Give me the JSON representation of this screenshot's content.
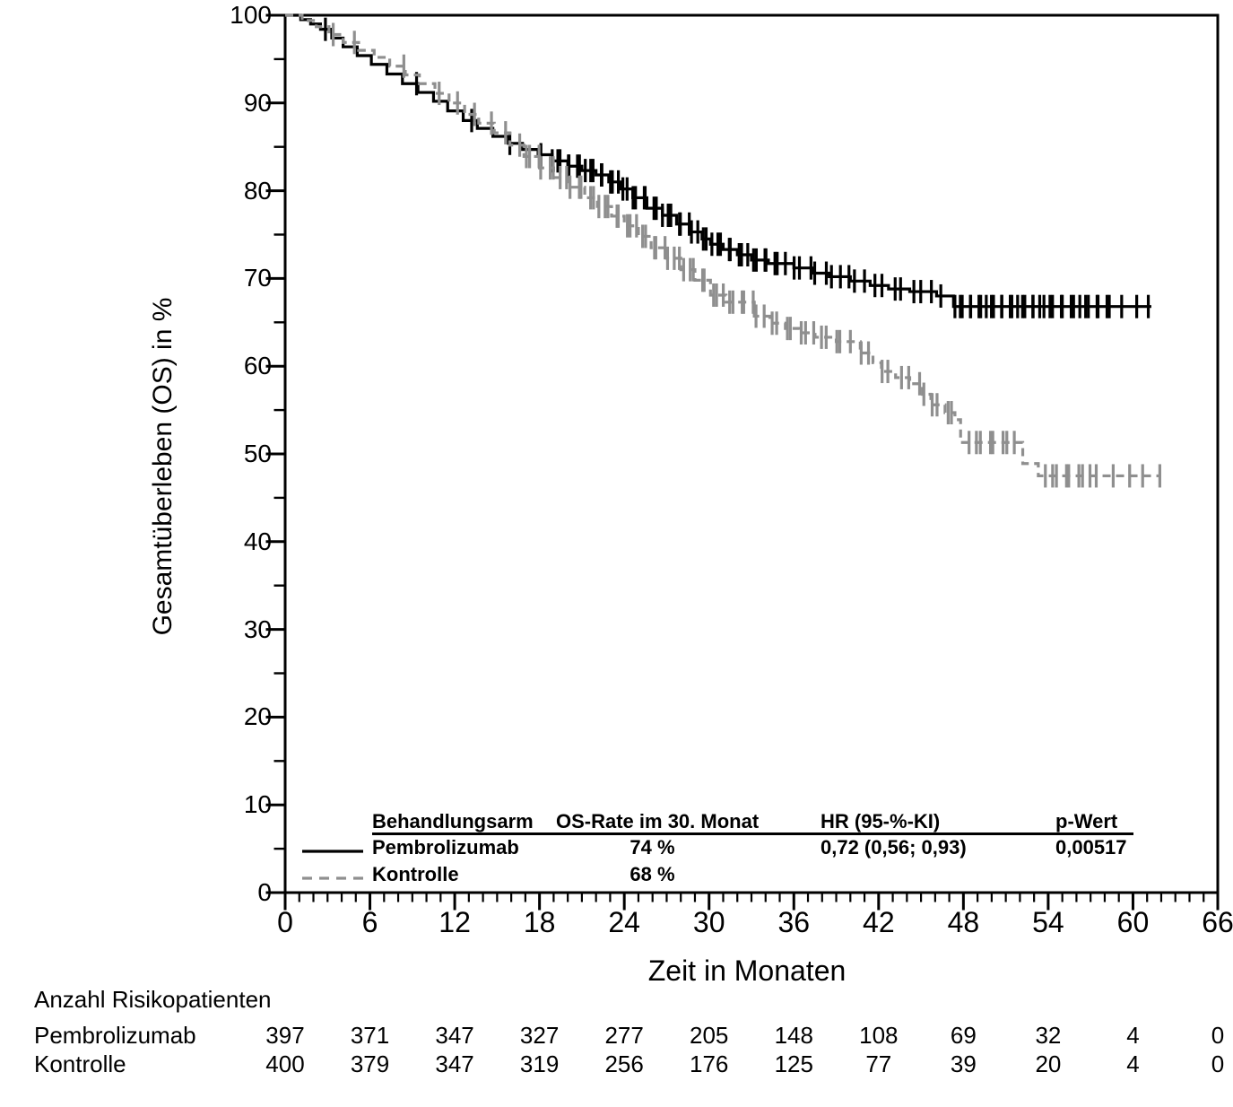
{
  "chart_data": {
    "type": "line",
    "subtype": "kaplan-meier-step",
    "title": "",
    "xlabel": "Zeit in Monaten",
    "ylabel": "Gesamtüberleben (OS) in %",
    "xlim": [
      0,
      66
    ],
    "ylim": [
      0,
      100
    ],
    "xticks": [
      0,
      6,
      12,
      18,
      24,
      30,
      36,
      42,
      48,
      54,
      60,
      66
    ],
    "yticks": [
      0,
      10,
      20,
      30,
      40,
      50,
      60,
      70,
      80,
      90,
      100
    ],
    "xtick_minor_step": 1,
    "ytick_minor_step": 5,
    "ytick_major_step": 10,
    "xtick_major_step": 6,
    "grid": false,
    "legend_position": "inside-bottom",
    "series": [
      {
        "name": "Pembrolizumab",
        "color": "#000000",
        "line_style": "solid",
        "points": [
          [
            0,
            100
          ],
          [
            1.1,
            99.5
          ],
          [
            1.8,
            99.0
          ],
          [
            2.5,
            98.4
          ],
          [
            3.3,
            97.4
          ],
          [
            4.1,
            96.4
          ],
          [
            5.1,
            95.4
          ],
          [
            6.1,
            94.4
          ],
          [
            7.2,
            93.3
          ],
          [
            8.3,
            92.2
          ],
          [
            9.4,
            91.2
          ],
          [
            10.5,
            90.2
          ],
          [
            11.5,
            89.1
          ],
          [
            12.6,
            88.0
          ],
          [
            13.6,
            87.1
          ],
          [
            14.7,
            86.2
          ],
          [
            15.8,
            85.4
          ],
          [
            16.8,
            84.7
          ],
          [
            17.9,
            84.1
          ],
          [
            18.9,
            83.4
          ],
          [
            20.0,
            82.8
          ],
          [
            21.0,
            82.3
          ],
          [
            22.0,
            81.8
          ],
          [
            22.9,
            81.0
          ],
          [
            23.7,
            80.2
          ],
          [
            24.6,
            79.2
          ],
          [
            25.6,
            78.0
          ],
          [
            26.7,
            77.2
          ],
          [
            27.7,
            76.2
          ],
          [
            28.6,
            75.3
          ],
          [
            29.5,
            74.5
          ],
          [
            30.1,
            73.9
          ],
          [
            31.0,
            73.3
          ],
          [
            32.0,
            72.7
          ],
          [
            33.0,
            72.1
          ],
          [
            34.2,
            71.7
          ],
          [
            36.0,
            71.2
          ],
          [
            37.4,
            70.6
          ],
          [
            38.5,
            70.2
          ],
          [
            40.0,
            69.7
          ],
          [
            41.4,
            69.2
          ],
          [
            42.7,
            68.8
          ],
          [
            44.2,
            68.5
          ],
          [
            46.1,
            68.0
          ],
          [
            47.3,
            66.8
          ],
          [
            61.3,
            66.8
          ]
        ],
        "censor_marks": {
          "singles": [
            2.85,
            9.3,
            13.2,
            15.9,
            18.1
          ],
          "bands": [
            [
              18.9,
              23.9,
              16
            ],
            [
              24.2,
              29.9,
              17
            ],
            [
              30.2,
              34.9,
              14
            ],
            [
              35.4,
              40.4,
              10
            ],
            [
              41.0,
              46.4,
              9
            ],
            [
              47.4,
              53.4,
              20
            ],
            [
              53.7,
              58.4,
              14
            ],
            [
              59.2,
              61.2,
              3
            ]
          ]
        }
      },
      {
        "name": "Kontrolle",
        "color": "#8f8f8f",
        "line_style": "dashed",
        "points": [
          [
            0,
            100
          ],
          [
            1.2,
            99.4
          ],
          [
            2.2,
            98.7
          ],
          [
            3.1,
            97.8
          ],
          [
            4.1,
            96.9
          ],
          [
            5.2,
            96.0
          ],
          [
            6.3,
            95.2
          ],
          [
            7.4,
            94.2
          ],
          [
            8.5,
            93.2
          ],
          [
            9.5,
            92.2
          ],
          [
            10.6,
            91.1
          ],
          [
            11.6,
            90.0
          ],
          [
            12.7,
            88.7
          ],
          [
            13.7,
            87.7
          ],
          [
            14.8,
            86.6
          ],
          [
            15.9,
            85.2
          ],
          [
            16.9,
            83.9
          ],
          [
            18.0,
            82.6
          ],
          [
            19.0,
            81.5
          ],
          [
            20.1,
            80.4
          ],
          [
            21.2,
            79.2
          ],
          [
            22.1,
            78.2
          ],
          [
            23.1,
            77.1
          ],
          [
            24.0,
            76.0
          ],
          [
            25.0,
            74.8
          ],
          [
            25.9,
            73.5
          ],
          [
            27.0,
            72.3
          ],
          [
            28.0,
            71.0
          ],
          [
            29.0,
            69.8
          ],
          [
            30.1,
            68.1
          ],
          [
            31.2,
            67.3
          ],
          [
            33.2,
            65.7
          ],
          [
            34.3,
            64.9
          ],
          [
            35.4,
            64.3
          ],
          [
            36.4,
            63.8
          ],
          [
            37.5,
            63.3
          ],
          [
            39.0,
            62.8
          ],
          [
            40.7,
            61.5
          ],
          [
            41.6,
            60.4
          ],
          [
            42.2,
            59.4
          ],
          [
            43.2,
            58.7
          ],
          [
            44.2,
            58.0
          ],
          [
            45.1,
            56.8
          ],
          [
            45.7,
            55.6
          ],
          [
            46.7,
            54.7
          ],
          [
            47.4,
            53.9
          ],
          [
            47.8,
            51.3
          ],
          [
            52.2,
            48.9
          ],
          [
            53.3,
            47.5
          ],
          [
            62.0,
            47.5
          ]
        ],
        "censor_marks": {
          "singles": [
            3.4,
            4.9,
            8.4,
            10.9,
            12.2,
            13.4,
            14.6,
            15.6
          ],
          "bands": [
            [
              16.6,
              21.9,
              14
            ],
            [
              22.2,
              27.9,
              16
            ],
            [
              28.2,
              33.4,
              14
            ],
            [
              33.9,
              39.4,
              12
            ],
            [
              40.0,
              44.9,
              8
            ],
            [
              45.2,
              47.3,
              5
            ],
            [
              48.4,
              51.6,
              8
            ],
            [
              53.8,
              57.4,
              9
            ],
            [
              58.6,
              61.9,
              4
            ]
          ]
        }
      }
    ]
  },
  "legend_table": {
    "headers": [
      "Behandlungsarm",
      "OS-Rate im 30. Monat",
      "HR (95-%-KI)",
      "p-Wert"
    ],
    "rows": [
      {
        "label": "Pembrolizumab",
        "os_rate": "74 %",
        "hr": "0,72 (0,56; 0,93)",
        "p_value": "0,00517"
      },
      {
        "label": "Kontrolle",
        "os_rate": "68 %",
        "hr": "",
        "p_value": ""
      }
    ]
  },
  "risk_table": {
    "title": "Anzahl Risikopatienten",
    "timepoints": [
      0,
      6,
      12,
      18,
      24,
      30,
      36,
      42,
      48,
      54,
      60,
      66
    ],
    "rows": [
      {
        "label": "Pembrolizumab",
        "values": [
          397,
          371,
          347,
          327,
          277,
          205,
          148,
          108,
          69,
          32,
          4,
          0
        ]
      },
      {
        "label": "Kontrolle",
        "values": [
          400,
          379,
          347,
          319,
          256,
          176,
          125,
          77,
          39,
          20,
          4,
          0
        ]
      }
    ]
  }
}
